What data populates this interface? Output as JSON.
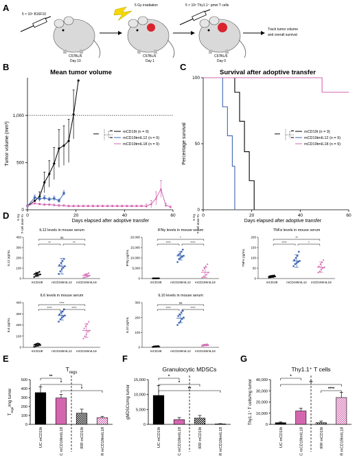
{
  "panel_a": {
    "label": "A",
    "steps": [
      "5 × 10⁵ B16F10",
      "5 Gy irradiation",
      "5 × 10⁶ Thy1.1⁺ pmel T cells"
    ],
    "mice": [
      {
        "strain": "C57BL/6",
        "day": "Day 10"
      },
      {
        "strain": "C57BL/6",
        "day": "Day 1"
      },
      {
        "strain": "C57BL/6",
        "day": "Day 0"
      }
    ],
    "outcome": [
      "Track tumor volume",
      "and overall survival"
    ]
  },
  "legend": {
    "groups": [
      {
        "name": "mCD19t",
        "n": "(n = 9)",
        "color": "#000000"
      },
      {
        "name": "mCD19tmIL12",
        "n": "(n = 9)",
        "color": "#3b64b0"
      },
      {
        "name": "mCD19tmIL18",
        "n": "(n = 9)",
        "color": "#d466b0"
      }
    ]
  },
  "dose_label": [
    "5 Gy",
    "T-cell dose #1"
  ],
  "chart_data": [
    {
      "id": "B",
      "type": "line",
      "title": "Mean tumor volume",
      "xlabel": "Days elapsed after adoptive transfer",
      "ylabel": "Tumor volume (mm³)",
      "xlim": [
        0,
        60
      ],
      "ylim": [
        0,
        1400
      ],
      "xticks": [
        0,
        20,
        40,
        60
      ],
      "yticks": [
        0,
        500,
        1000
      ],
      "ytick_labels": [
        "0",
        "500",
        "1,000"
      ],
      "reference_line": 1000,
      "sig": [
        "**",
        "****",
        "**"
      ],
      "series": [
        {
          "name": "mCD19t",
          "color": "#000000",
          "marker": "circle",
          "x": [
            0,
            3,
            5,
            7,
            9,
            11,
            13,
            15,
            17,
            19,
            21
          ],
          "y": [
            40,
            95,
            140,
            290,
            380,
            490,
            650,
            680,
            730,
            1010,
            1370
          ],
          "err": [
            10,
            30,
            50,
            110,
            140,
            170,
            200,
            210,
            230,
            260,
            0
          ]
        },
        {
          "name": "mCD19tmIL12",
          "color": "#3b64b0",
          "marker": "square",
          "x": [
            0,
            3,
            5,
            7,
            9,
            11,
            13,
            15
          ],
          "y": [
            40,
            130,
            115,
            125,
            110,
            120,
            95,
            175
          ],
          "err": [
            10,
            25,
            20,
            25,
            20,
            25,
            20,
            25
          ]
        },
        {
          "name": "mCD19tmIL18",
          "color": "#d466b0",
          "marker": "triangle",
          "x": [
            0,
            3,
            5,
            7,
            9,
            11,
            13,
            15,
            17,
            19,
            21,
            23,
            25,
            27,
            29,
            31,
            33,
            35,
            37,
            39,
            41,
            43,
            45,
            47,
            49,
            51,
            53,
            55,
            57,
            59
          ],
          "y": [
            40,
            70,
            60,
            55,
            55,
            50,
            45,
            45,
            40,
            40,
            40,
            40,
            40,
            40,
            40,
            40,
            40,
            40,
            40,
            40,
            40,
            40,
            40,
            40,
            40,
            60,
            120,
            220,
            50,
            30
          ],
          "err": [
            10,
            15,
            10,
            10,
            10,
            10,
            10,
            10,
            10,
            10,
            10,
            10,
            10,
            10,
            10,
            10,
            10,
            10,
            10,
            10,
            10,
            10,
            10,
            10,
            20,
            40,
            70,
            90,
            20,
            10
          ]
        }
      ]
    },
    {
      "id": "C",
      "type": "line",
      "title": "Survival after adoptive transfer",
      "xlabel": "Days elapsed after adoptive transfer",
      "ylabel": "Percentage survival",
      "xlim": [
        0,
        60
      ],
      "ylim": [
        0,
        100
      ],
      "xticks": [
        0,
        20,
        40,
        60
      ],
      "yticks": [
        0,
        50,
        100
      ],
      "sig": [
        "**",
        "****",
        "**"
      ],
      "series": [
        {
          "name": "mCD19t",
          "color": "#000000",
          "x": [
            0,
            13,
            13,
            15,
            15,
            17,
            17,
            19,
            19,
            21,
            21
          ],
          "y": [
            100,
            100,
            89,
            89,
            67,
            67,
            44,
            44,
            22,
            22,
            0
          ]
        },
        {
          "name": "mCD19tmIL12",
          "color": "#3b64b0",
          "x": [
            0,
            8,
            8,
            10,
            10,
            12,
            12,
            13,
            13
          ],
          "y": [
            100,
            100,
            78,
            78,
            56,
            56,
            33,
            33,
            0
          ]
        },
        {
          "name": "mCD19tmIL18",
          "color": "#d466b0",
          "x": [
            0,
            49,
            49,
            60
          ],
          "y": [
            100,
            100,
            89,
            89
          ]
        }
      ]
    },
    {
      "id": "D1",
      "type": "scatter",
      "title": "IL12 levels in mouse serum",
      "ylabel": "IL12 pg/mL",
      "ylim": [
        0,
        400
      ],
      "yticks": [
        0,
        100,
        200,
        300,
        400
      ],
      "categories": [
        "mCD19t",
        "mCD19tmIL12",
        "mCD19tmIL18"
      ],
      "means": [
        40,
        120,
        30
      ],
      "sd": [
        20,
        75,
        15
      ],
      "points": [
        [
          15,
          25,
          30,
          35,
          40,
          45,
          50,
          55,
          65
        ],
        [
          45,
          70,
          90,
          105,
          120,
          130,
          150,
          170,
          190
        ],
        [
          10,
          15,
          20,
          25,
          30,
          35,
          40,
          45,
          55
        ]
      ],
      "brackets": [
        {
          "from": 0,
          "to": 1,
          "label": "**"
        },
        {
          "from": 0,
          "to": 2,
          "label": "ns"
        },
        {
          "from": 1,
          "to": 2,
          "label": "**"
        }
      ]
    },
    {
      "id": "D2",
      "type": "scatter",
      "title": "IFNγ levels in mouse serum",
      "ylabel": "IFNγ pg/mL",
      "ylim": [
        0,
        20000
      ],
      "yticks": [
        0,
        5000,
        10000,
        15000,
        20000
      ],
      "categories": [
        "mCD19t",
        "mCD19tmIL12",
        "mCD19tmIL18"
      ],
      "means": [
        100,
        11000,
        3000
      ],
      "sd": [
        50,
        2000,
        2500
      ],
      "points": [
        [
          50,
          80,
          100,
          100,
          120,
          150,
          60,
          90,
          110
        ],
        [
          8000,
          9500,
          10000,
          10500,
          11000,
          11500,
          12000,
          13000,
          14000
        ],
        [
          500,
          1000,
          1500,
          2000,
          3000,
          4000,
          5000,
          6000,
          7000
        ]
      ],
      "brackets": [
        {
          "from": 0,
          "to": 1,
          "label": "****"
        },
        {
          "from": 0,
          "to": 2,
          "label": "*"
        },
        {
          "from": 1,
          "to": 2,
          "label": "****"
        }
      ]
    },
    {
      "id": "D3",
      "type": "scatter",
      "title": "TNFα levels in mouse serum",
      "ylabel": "TNFα pg/mL",
      "ylim": [
        0,
        200
      ],
      "yticks": [
        0,
        50,
        100,
        150,
        200
      ],
      "categories": [
        "mCD19t",
        "mCD19tmIL12",
        "mCD19tmIL18"
      ],
      "means": [
        10,
        85,
        55
      ],
      "sd": [
        5,
        30,
        25
      ],
      "points": [
        [
          5,
          6,
          8,
          9,
          10,
          11,
          12,
          14,
          15
        ],
        [
          60,
          70,
          75,
          80,
          85,
          90,
          100,
          110,
          130
        ],
        [
          30,
          35,
          45,
          50,
          55,
          60,
          70,
          80,
          90
        ]
      ],
      "brackets": [
        {
          "from": 0,
          "to": 1,
          "label": "****"
        },
        {
          "from": 0,
          "to": 2,
          "label": "**"
        },
        {
          "from": 1,
          "to": 2,
          "label": "*"
        }
      ]
    },
    {
      "id": "D4",
      "type": "scatter",
      "title": "IL6 levels in mouse serum",
      "ylabel": "IL6 pg/mL",
      "ylim": [
        0,
        400
      ],
      "yticks": [
        0,
        100,
        200,
        300,
        400
      ],
      "categories": [
        "mCD19t",
        "mCD19tmIL12",
        "mCD19tmIL18"
      ],
      "means": [
        20,
        285,
        150
      ],
      "sd": [
        10,
        40,
        60
      ],
      "points": [
        [
          5,
          10,
          15,
          20,
          20,
          25,
          30,
          35,
          30
        ],
        [
          230,
          250,
          265,
          275,
          285,
          295,
          310,
          320,
          340
        ],
        [
          80,
          100,
          120,
          140,
          150,
          170,
          190,
          210,
          230
        ]
      ],
      "brackets": [
        {
          "from": 0,
          "to": 1,
          "label": "****"
        },
        {
          "from": 0,
          "to": 2,
          "label": "****"
        },
        {
          "from": 1,
          "to": 2,
          "label": "****"
        }
      ]
    },
    {
      "id": "D5",
      "type": "scatter",
      "title": "IL10 levels in mouse serum",
      "ylabel": "IL10 pg/mL",
      "ylim": [
        0,
        300
      ],
      "yticks": [
        0,
        100,
        200,
        300
      ],
      "categories": [
        "mCD19t",
        "mCD19tmIL12",
        "mCD19tmIL18"
      ],
      "means": [
        5,
        195,
        15
      ],
      "sd": [
        3,
        30,
        5
      ],
      "points": [
        [
          2,
          3,
          4,
          5,
          5,
          6,
          7,
          8,
          9
        ],
        [
          150,
          165,
          175,
          190,
          200,
          210,
          220,
          235,
          245
        ],
        [
          10,
          12,
          14,
          15,
          15,
          16,
          18,
          20,
          22
        ]
      ],
      "brackets": [
        {
          "from": 0,
          "to": 1,
          "label": "****"
        },
        {
          "from": 0,
          "to": 2,
          "label": "ns"
        },
        {
          "from": 1,
          "to": 2,
          "label": "****"
        }
      ]
    },
    {
      "id": "E",
      "type": "bar",
      "title": "T",
      "title_sub": "regs",
      "ylabel": "T",
      "ylabel_sub": "regs",
      "ylabel_tail": "/mg tumor",
      "ylim": [
        0,
        500
      ],
      "yticks": [
        0,
        100,
        200,
        300,
        400,
        500
      ],
      "categories": [
        "UC mCD19t",
        "UC mCD19tmIL18",
        "IRR mCD19t",
        "IRR mCD19tmIL18"
      ],
      "values": [
        355,
        295,
        125,
        75
      ],
      "err": [
        65,
        40,
        45,
        15
      ],
      "styles": [
        "black",
        "magenta",
        "black-hatch",
        "magenta-hatch"
      ],
      "brackets": [
        {
          "from": 0,
          "to": 1,
          "label": "**"
        },
        {
          "from": 0,
          "to": 2,
          "label": "*"
        },
        {
          "from": 1,
          "to": 3,
          "label": "*"
        }
      ]
    },
    {
      "id": "F",
      "type": "bar",
      "title": "Granulocytic MDSCs",
      "ylabel": "gMDSCs/mg tumor",
      "ylim": [
        0,
        15000
      ],
      "yticks": [
        0,
        5000,
        10000,
        15000
      ],
      "categories": [
        "UC mCD19t",
        "UC mCD19tmIL18",
        "IRR mCD19t",
        "IRR mCD19tmIL18"
      ],
      "values": [
        9700,
        1600,
        2100,
        150
      ],
      "err": [
        3300,
        700,
        900,
        100
      ],
      "styles": [
        "black",
        "magenta",
        "black-hatch",
        "magenta-hatch"
      ],
      "brackets": [
        {
          "from": 0,
          "to": 1,
          "label": "*"
        },
        {
          "from": 0,
          "to": 2,
          "label": "*"
        },
        {
          "from": 0,
          "to": 3,
          "label": "**"
        }
      ]
    },
    {
      "id": "G",
      "type": "bar",
      "title": "Thy1.1⁺ T cells",
      "ylabel": "Thy1.1⁺ T cells/mg tumor",
      "ylim": [
        0,
        40000
      ],
      "yticks": [
        0,
        10000,
        20000,
        30000,
        40000
      ],
      "ytick_labels": [
        "0",
        "10,000",
        "20,000",
        "30,000",
        "40,000"
      ],
      "categories": [
        "UC mCD19t",
        "UC mCD19tmIL18",
        "IRR mCD19t",
        "IRR mCD19tmIL18"
      ],
      "values": [
        1500,
        12000,
        1500,
        24000
      ],
      "err": [
        800,
        2500,
        1500,
        4500
      ],
      "styles": [
        "black",
        "magenta",
        "black-hatch",
        "magenta-hatch"
      ],
      "brackets": [
        {
          "from": 0,
          "to": 1,
          "label": "*"
        },
        {
          "from": 0,
          "to": 3,
          "label": "**"
        },
        {
          "from": 2,
          "to": 3,
          "label": "****"
        }
      ]
    }
  ]
}
